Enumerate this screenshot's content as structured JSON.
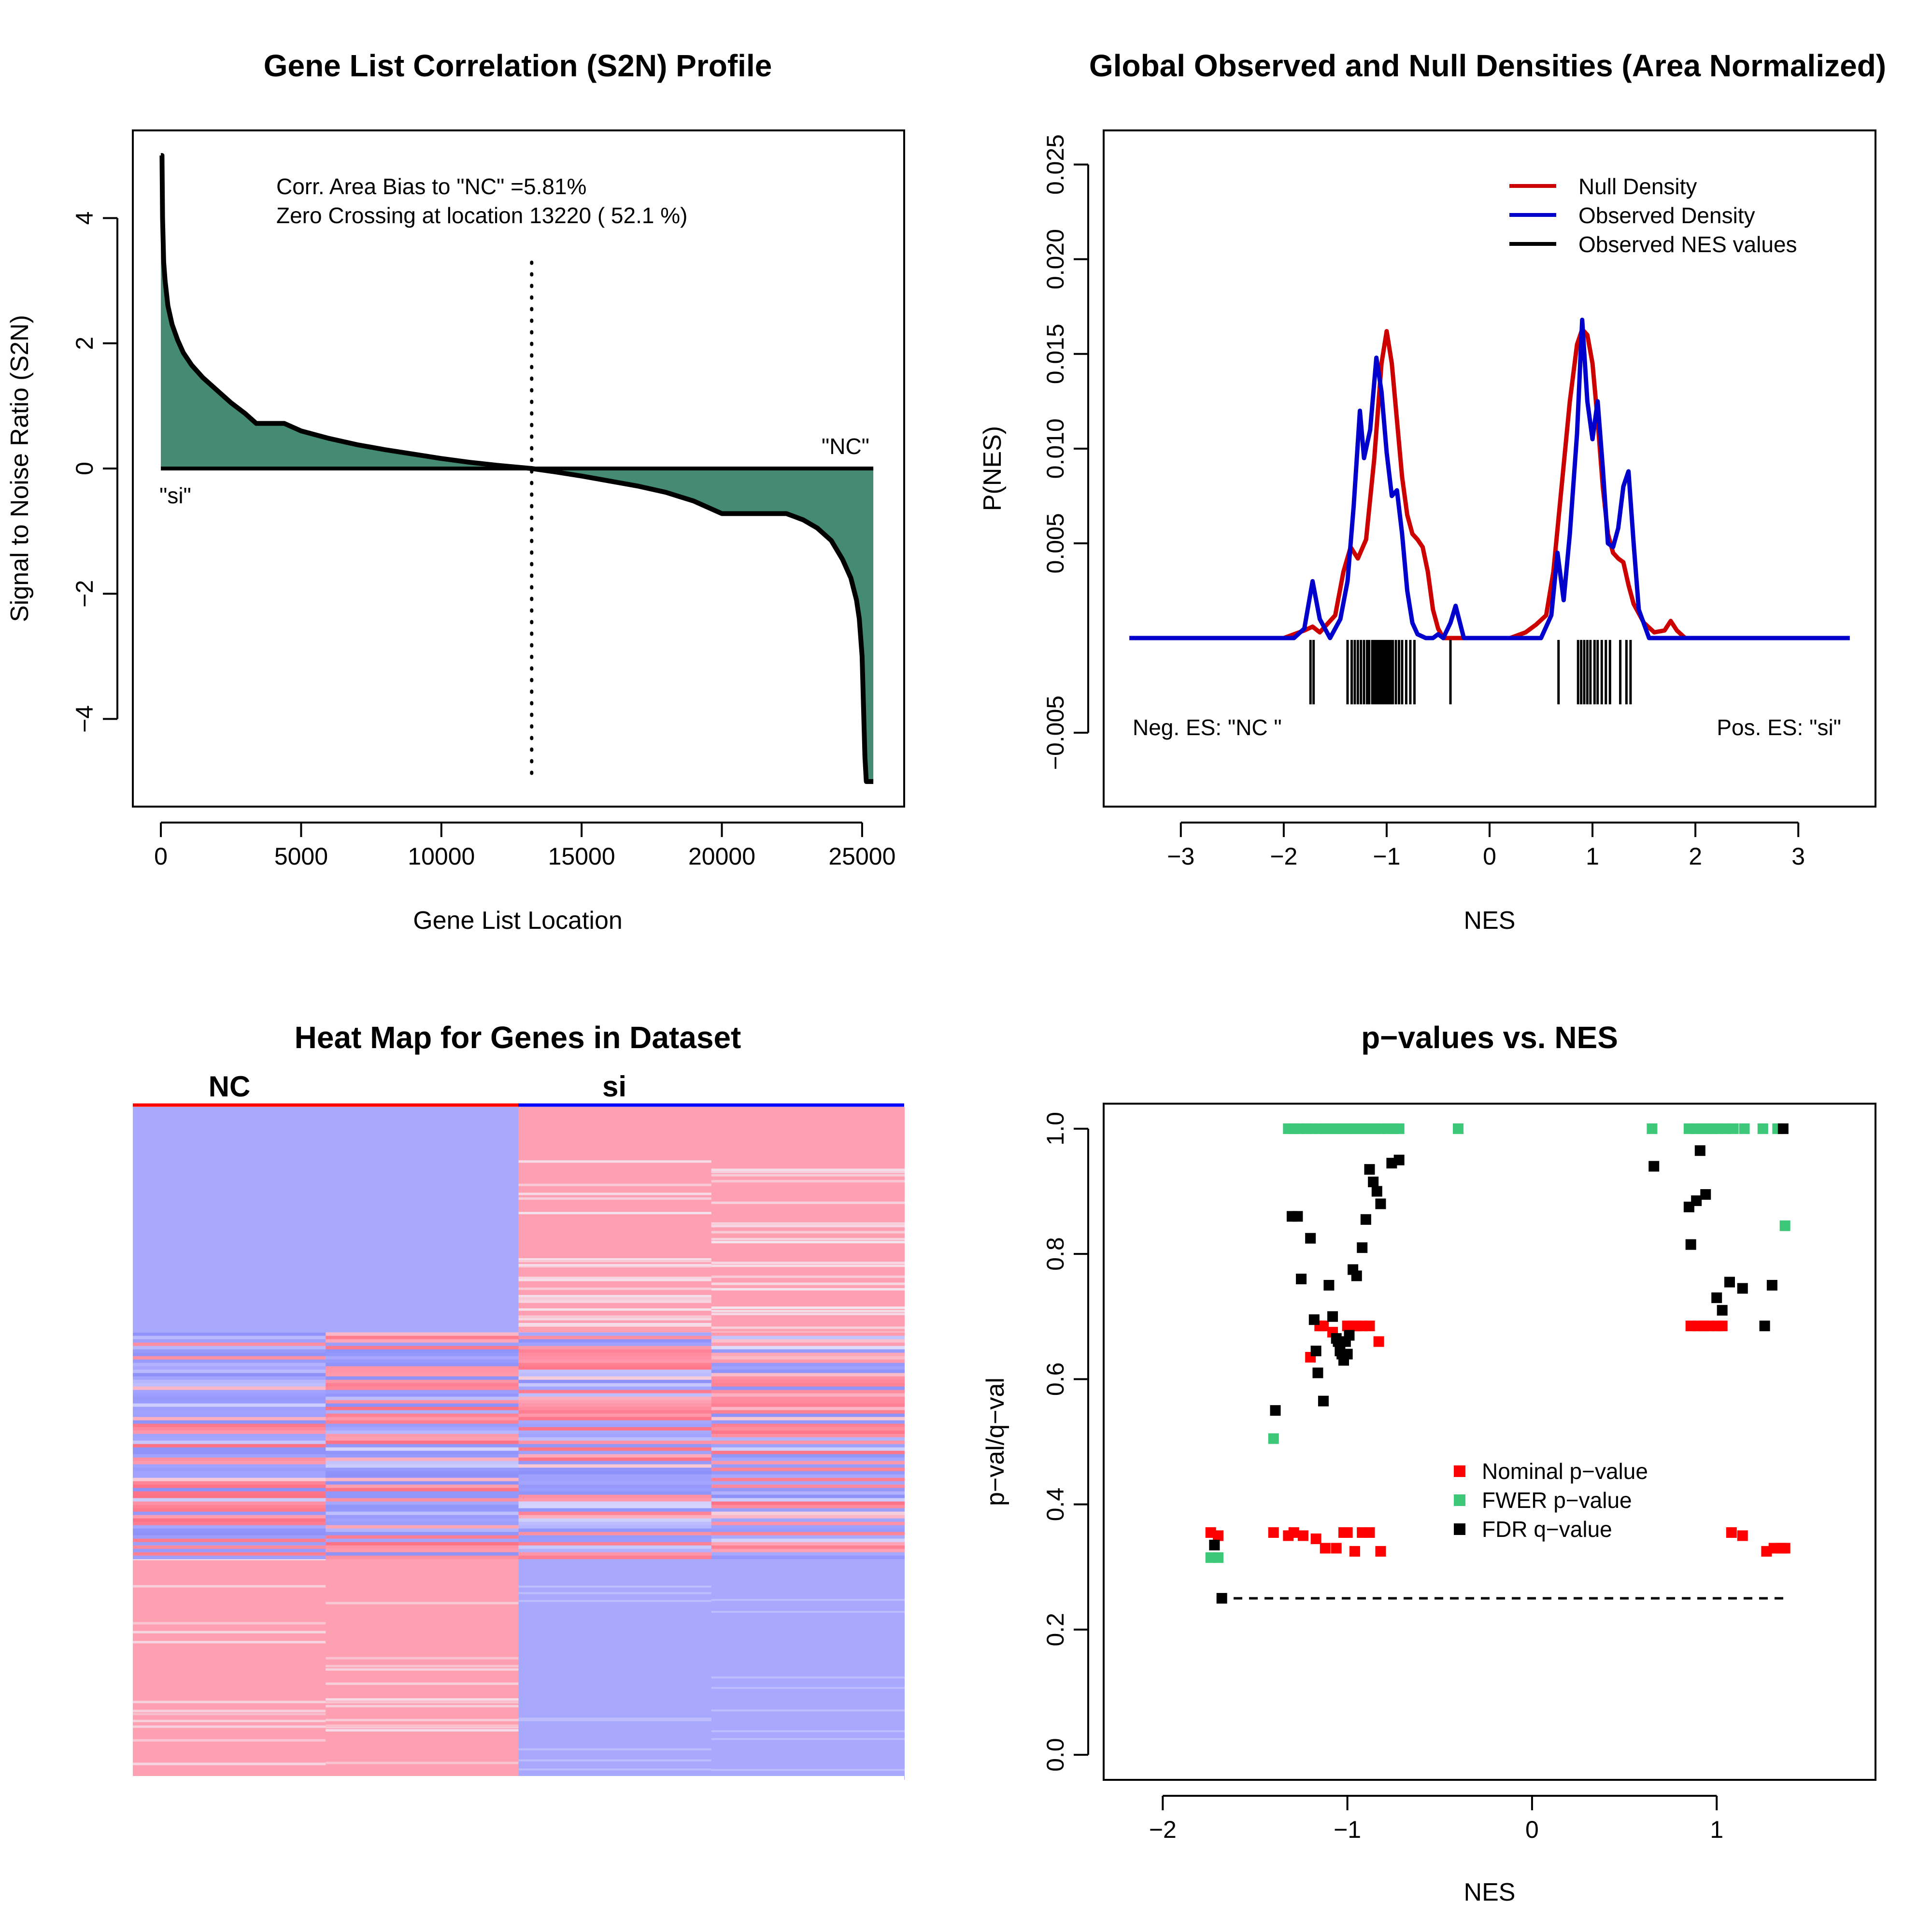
{
  "chart_data": [
    {
      "type": "area",
      "title": "Gene List Correlation (S2N) Profile",
      "xlabel": "Gene List Location",
      "ylabel": "Signal to Noise Ratio (S2N)",
      "xlim": [
        -1000,
        26500
      ],
      "ylim": [
        -5.4,
        5.4
      ],
      "xticks": [
        0,
        5000,
        10000,
        15000,
        20000,
        25000
      ],
      "yticks": [
        -4,
        -2,
        0,
        2,
        4
      ],
      "ytick_labels": [
        "−4",
        "−2",
        "0",
        "2",
        "4"
      ],
      "zero_crossing": 13220,
      "fill_color": "#458B74",
      "annotations": [
        "Corr. Area Bias to \"NC\" =5.81%",
        "Zero Crossing at location  13220  ( 52.1  %)"
      ],
      "label_pos": "\"NC\"",
      "label_neg": "\"si\"",
      "x": [
        0,
        40,
        60,
        100,
        150,
        250,
        400,
        600,
        800,
        1100,
        1500,
        2000,
        2500,
        3000,
        3400,
        4400,
        5000,
        6000,
        7000,
        8000,
        9000,
        10000,
        11000,
        12000,
        13220,
        14000,
        15000,
        16000,
        17000,
        18000,
        19000,
        20000,
        21000,
        22300,
        22900,
        23400,
        23900,
        24300,
        24600,
        24800,
        24900,
        25000,
        25050,
        25100,
        25150,
        25250,
        25400
      ],
      "y": [
        5.0,
        5.0,
        4.0,
        3.3,
        3.0,
        2.6,
        2.3,
        2.05,
        1.85,
        1.65,
        1.45,
        1.25,
        1.05,
        0.88,
        0.72,
        0.72,
        0.6,
        0.48,
        0.38,
        0.3,
        0.23,
        0.16,
        0.1,
        0.05,
        0.0,
        -0.05,
        -0.12,
        -0.2,
        -0.28,
        -0.38,
        -0.52,
        -0.72,
        -0.72,
        -0.72,
        -0.82,
        -0.95,
        -1.15,
        -1.45,
        -1.75,
        -2.1,
        -2.4,
        -3.0,
        -3.8,
        -4.6,
        -5.0,
        -5.0,
        -5.0
      ]
    },
    {
      "type": "line",
      "title": "Global Observed and Null Densities (Area Normalized)",
      "xlabel": "NES",
      "ylabel": "P(NES)",
      "xlim": [
        -3.75,
        3.75
      ],
      "ylim": [
        -0.0089,
        0.0268
      ],
      "xticks": [
        -3,
        -2,
        -1,
        0,
        1,
        2,
        3
      ],
      "xtick_labels": [
        "−3",
        "−2",
        "−1",
        "0",
        "1",
        "2",
        "3"
      ],
      "yticks": [
        -0.005,
        0.005,
        0.01,
        0.015,
        0.02,
        0.025
      ],
      "ytick_labels": [
        "−0.005",
        "0.005",
        "0.010",
        "0.015",
        "0.020",
        "0.025"
      ],
      "annotations": [
        "Neg. ES: \"NC \"",
        "Pos. ES: \"si\""
      ],
      "legend": [
        "Null Density",
        "Observed Density",
        "Observed NES values"
      ],
      "legend_position": "top-right",
      "series": [
        {
          "name": "Null Density",
          "color": "#CD0000",
          "x": [
            -3.5,
            -2.0,
            -1.9,
            -1.8,
            -1.72,
            -1.65,
            -1.5,
            -1.42,
            -1.35,
            -1.28,
            -1.2,
            -1.12,
            -1.05,
            -1.0,
            -0.95,
            -0.9,
            -0.85,
            -0.8,
            -0.75,
            -0.7,
            -0.65,
            -0.6,
            -0.55,
            -0.5,
            -0.45,
            -0.35,
            -0.2,
            0.2,
            0.35,
            0.45,
            0.55,
            0.62,
            0.7,
            0.78,
            0.85,
            0.9,
            0.95,
            1.0,
            1.05,
            1.1,
            1.15,
            1.2,
            1.25,
            1.3,
            1.35,
            1.4,
            1.5,
            1.6,
            1.7,
            1.76,
            1.82,
            1.9,
            3.5
          ],
          "y": [
            0.0,
            0.0,
            0.0002,
            0.0004,
            0.0006,
            0.0003,
            0.0012,
            0.0035,
            0.0048,
            0.0042,
            0.0052,
            0.0095,
            0.0145,
            0.0162,
            0.0145,
            0.0115,
            0.0085,
            0.0065,
            0.0055,
            0.0052,
            0.0048,
            0.0035,
            0.0015,
            0.0005,
            0.0,
            0.0,
            0.0,
            0.0,
            0.0003,
            0.0007,
            0.0012,
            0.0035,
            0.008,
            0.0125,
            0.0155,
            0.0163,
            0.016,
            0.0145,
            0.0115,
            0.008,
            0.0055,
            0.0045,
            0.0042,
            0.004,
            0.0028,
            0.0018,
            0.0008,
            0.0003,
            0.0004,
            0.0009,
            0.0004,
            0.0,
            0.0
          ]
        },
        {
          "name": "Observed Density",
          "color": "#0000CD",
          "x": [
            -3.5,
            -1.9,
            -1.8,
            -1.72,
            -1.65,
            -1.55,
            -1.45,
            -1.38,
            -1.32,
            -1.26,
            -1.22,
            -1.16,
            -1.1,
            -1.05,
            -1.0,
            -0.95,
            -0.9,
            -0.85,
            -0.8,
            -0.75,
            -0.7,
            -0.62,
            -0.55,
            -0.5,
            -0.45,
            -0.38,
            -0.33,
            -0.25,
            0.3,
            0.5,
            0.6,
            0.66,
            0.72,
            0.78,
            0.85,
            0.9,
            0.95,
            1.0,
            1.05,
            1.1,
            1.15,
            1.2,
            1.25,
            1.3,
            1.35,
            1.4,
            1.45,
            1.55,
            3.5
          ],
          "y": [
            0.0,
            0.0,
            0.0005,
            0.003,
            0.001,
            0.0,
            0.001,
            0.003,
            0.007,
            0.012,
            0.0095,
            0.011,
            0.0148,
            0.013,
            0.0098,
            0.0075,
            0.0078,
            0.0055,
            0.0025,
            0.0008,
            0.0002,
            0.0,
            0.0,
            0.0002,
            0.0,
            0.0008,
            0.0017,
            0.0,
            0.0,
            0.0,
            0.0012,
            0.0045,
            0.002,
            0.0055,
            0.0108,
            0.0168,
            0.0125,
            0.0105,
            0.0125,
            0.009,
            0.005,
            0.0048,
            0.0058,
            0.008,
            0.0088,
            0.005,
            0.0015,
            0.0,
            0.0
          ]
        }
      ],
      "observed_nes": [
        -1.74,
        -1.71,
        -1.38,
        -1.34,
        -1.31,
        -1.28,
        -1.25,
        -1.22,
        -1.19,
        -1.17,
        -1.14,
        -1.12,
        -1.1,
        -1.08,
        -1.06,
        -1.04,
        -1.02,
        -1.0,
        -0.98,
        -0.96,
        -0.94,
        -0.91,
        -0.88,
        -0.85,
        -0.81,
        -0.77,
        -0.73,
        -0.38,
        0.67,
        0.86,
        0.89,
        0.92,
        0.95,
        0.98,
        1.02,
        1.05,
        1.09,
        1.13,
        1.17,
        1.27,
        1.33,
        1.37
      ]
    },
    {
      "type": "heatmap",
      "title": "Heat Map for Genes in Dataset",
      "groups": [
        {
          "label": "NC",
          "color": "#FF0000"
        },
        {
          "label": "si",
          "color": "#0000FF"
        }
      ],
      "colors": {
        "high": "#FF9AAD",
        "low": "#A8A8FF",
        "neutral": "#EEEEF8"
      }
    },
    {
      "type": "scatter",
      "title": "p−values vs. NES",
      "xlabel": "NES",
      "ylabel": "p−val/q−val",
      "xlim": [
        -2.32,
        1.86
      ],
      "ylim": [
        -0.04,
        1.04
      ],
      "xticks": [
        -2,
        -1,
        0,
        1
      ],
      "xtick_labels": [
        "−2",
        "−1",
        "0",
        "1"
      ],
      "yticks": [
        0.0,
        0.2,
        0.4,
        0.6,
        0.8,
        1.0
      ],
      "ytick_labels": [
        "0.0",
        "0.2",
        "0.4",
        "0.6",
        "0.8",
        "1.0"
      ],
      "reference_line": {
        "y": 0.25,
        "x_from": -1.7,
        "x_to": 1.38
      },
      "legend": [
        "Nominal p−value",
        "FWER p−value",
        "FDR q−value"
      ],
      "legend_position": "center-right",
      "series": [
        {
          "name": "Nominal p−value",
          "color": "#FF0000",
          "x": [
            -1.74,
            -1.7,
            -1.4,
            -1.32,
            -1.29,
            -1.24,
            -1.17,
            -1.12,
            -1.06,
            -1.02,
            -1.0,
            -0.96,
            -0.92,
            -0.88,
            -0.82,
            -1.2,
            -1.15,
            -1.13,
            -1.08,
            -1.05,
            -1.03,
            -1.0,
            -0.97,
            -0.95,
            -0.92,
            -0.88,
            -0.83,
            0.86,
            0.9,
            0.93,
            0.96,
            1.0,
            1.03,
            1.08,
            1.14,
            1.27,
            1.31,
            1.35,
            1.37
          ],
          "y": [
            0.355,
            0.35,
            0.355,
            0.35,
            0.355,
            0.35,
            0.345,
            0.33,
            0.33,
            0.355,
            0.355,
            0.325,
            0.355,
            0.355,
            0.325,
            0.635,
            0.685,
            0.685,
            0.675,
            0.66,
            0.66,
            0.685,
            0.685,
            0.685,
            0.685,
            0.685,
            0.66,
            0.685,
            0.685,
            0.685,
            0.685,
            0.685,
            0.685,
            0.355,
            0.35,
            0.325,
            0.33,
            0.33,
            0.33
          ]
        },
        {
          "name": "FWER p−value",
          "color": "#3CC878",
          "x": [
            -1.74,
            -1.7,
            -1.4,
            -1.32,
            -1.29,
            -1.26,
            -1.22,
            -1.19,
            -1.15,
            -1.12,
            -1.09,
            -1.06,
            -1.03,
            -1.0,
            -0.97,
            -0.94,
            -0.91,
            -0.88,
            -0.85,
            -0.82,
            -0.78,
            -0.75,
            -0.72,
            -0.4,
            0.65,
            0.85,
            0.89,
            0.92,
            0.95,
            0.98,
            1.01,
            1.05,
            1.09,
            1.15,
            1.25,
            1.33,
            1.37
          ],
          "y": [
            0.315,
            0.315,
            0.505,
            1.0,
            1.0,
            1.0,
            1.0,
            1.0,
            1.0,
            1.0,
            1.0,
            1.0,
            1.0,
            1.0,
            1.0,
            1.0,
            1.0,
            1.0,
            1.0,
            1.0,
            1.0,
            1.0,
            1.0,
            1.0,
            1.0,
            1.0,
            1.0,
            1.0,
            1.0,
            1.0,
            1.0,
            1.0,
            1.0,
            1.0,
            1.0,
            1.0,
            0.845
          ]
        },
        {
          "name": "FDR q−value",
          "color": "#000000",
          "x": [
            -1.72,
            -1.68,
            -1.39,
            -1.3,
            -1.27,
            -1.25,
            -1.2,
            -1.18,
            -1.17,
            -1.16,
            -1.13,
            -1.1,
            -1.08,
            -1.06,
            -1.04,
            -1.02,
            -1.0,
            -0.99,
            -0.97,
            -0.95,
            -0.92,
            -0.9,
            -0.88,
            -0.86,
            -0.84,
            -0.82,
            -0.76,
            -0.72,
            -1.05,
            -1.03,
            -1.01,
            0.66,
            0.85,
            0.86,
            0.89,
            0.91,
            0.94,
            1.0,
            1.03,
            1.07,
            1.14,
            1.26,
            1.3,
            1.36
          ],
          "y": [
            0.335,
            0.25,
            0.55,
            0.86,
            0.86,
            0.76,
            0.825,
            0.695,
            0.645,
            0.61,
            0.565,
            0.75,
            0.7,
            0.665,
            0.645,
            0.63,
            0.64,
            0.67,
            0.775,
            0.765,
            0.81,
            0.855,
            0.935,
            0.915,
            0.9,
            0.88,
            0.945,
            0.95,
            0.66,
            0.64,
            0.66,
            0.94,
            0.875,
            0.815,
            0.885,
            0.965,
            0.895,
            0.73,
            0.71,
            0.755,
            0.745,
            0.685,
            0.75,
            1.0
          ]
        }
      ]
    }
  ]
}
